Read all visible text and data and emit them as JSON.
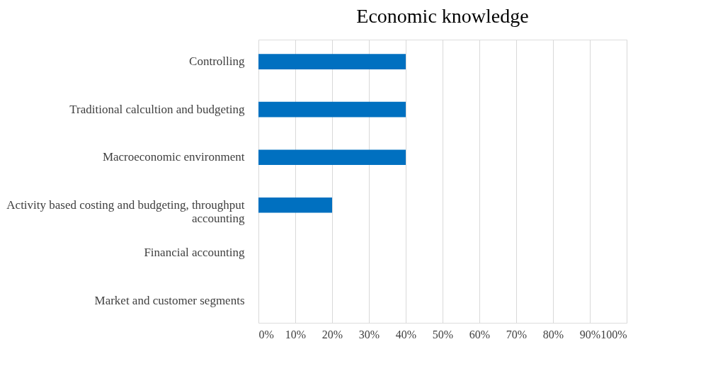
{
  "chart_data": {
    "type": "bar",
    "title": "Economic knowledge",
    "orientation": "horizontal",
    "categories": [
      "Controlling",
      "Traditional calcultion and budgeting",
      "Macroeconomic environment",
      "Activity based costing and budgeting, throughput accounting",
      "Financial accounting",
      "Market and customer segments"
    ],
    "values": [
      40,
      40,
      40,
      20,
      0,
      0
    ],
    "color": "#0070c0",
    "xlim": [
      0,
      100
    ],
    "xticks": [
      {
        "value": 0,
        "label": "0%"
      },
      {
        "value": 10,
        "label": "10%"
      },
      {
        "value": 20,
        "label": "20%"
      },
      {
        "value": 30,
        "label": "30%"
      },
      {
        "value": 40,
        "label": "40%"
      },
      {
        "value": 50,
        "label": "50%"
      },
      {
        "value": 60,
        "label": "60%"
      },
      {
        "value": 70,
        "label": "70%"
      },
      {
        "value": 80,
        "label": "80%"
      },
      {
        "value": 90,
        "label": "90%"
      },
      {
        "value": 100,
        "label": "100%"
      }
    ],
    "grid": "x"
  }
}
